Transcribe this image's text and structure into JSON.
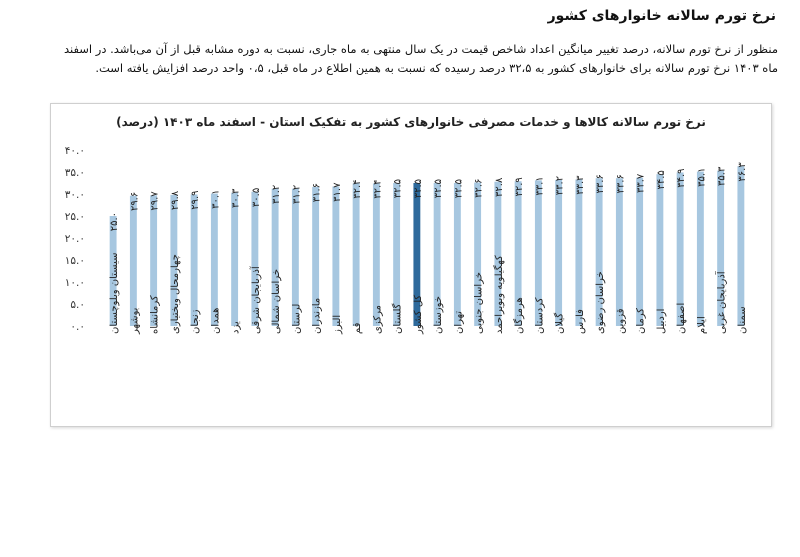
{
  "heading": "نرخ تورم سالانه خانوارهای کشور",
  "paragraph": {
    "line1": "منظور از نرخ تورم سالانه، درصد تغییر میانگین اعداد شاخص قیمت در یک سال منتهی به ماه جاری، نسبت به دوره مشابه قبل از آن می‌باشد. در اسفند",
    "line2": "ماه ۱۴۰۳ نرخ تورم سالانه برای خانوارهای کشور به ۳۲،۵ درصد رسیده که نسبت به همین اطلاع در ماه قبل، ۰،۵ واحد درصد افزایش یافته است."
  },
  "chart_data": {
    "type": "bar",
    "title": "نرخ تورم سالانه کالاها و خدمات مصرفی خانوارهای کشور به تفکیک استان - اسفند ماه ۱۴۰۳ (درصد)",
    "ylim": [
      0,
      40
    ],
    "yticks": [
      0,
      5,
      10,
      15,
      20,
      25,
      30,
      35,
      40
    ],
    "ytick_labels": [
      "۰.۰",
      "۵.۰",
      "۱۰.۰",
      "۱۵.۰",
      "۲۰.۰",
      "۲۵.۰",
      "۳۰.۰",
      "۳۵.۰",
      "۴۰.۰"
    ],
    "grid": false,
    "highlight_index": 15,
    "colors": {
      "bar": "#a7c7e0",
      "highlight": "#2e6a9c"
    },
    "categories": [
      "سیستان وبلوچستان",
      "بوشهر",
      "کرمانشاه",
      "چهارمحال وبختیاری",
      "زنجان",
      "همدان",
      "یزد",
      "آذربایجان شرقی",
      "خراسان شمالی",
      "لرستان",
      "مازندران",
      "البرز",
      "قم",
      "مرکزی",
      "گلستان",
      "کل کشور",
      "خوزستان",
      "تهران",
      "خراسان جنوبی",
      "کهگیلویه وبویراحمد",
      "هرمزگان",
      "کردستان",
      "گیلان",
      "فارس",
      "خراسان رضوی",
      "قزوین",
      "کرمان",
      "اردبیل",
      "اصفهان",
      "ایلام",
      "آذربایجان غربی",
      "سمنان"
    ],
    "values": [
      25.0,
      29.6,
      29.7,
      29.8,
      29.9,
      30.1,
      30.3,
      30.5,
      31.2,
      31.2,
      31.6,
      31.7,
      32.4,
      32.4,
      32.5,
      32.5,
      32.5,
      32.5,
      32.6,
      32.8,
      32.9,
      33.1,
      33.2,
      33.3,
      33.6,
      33.6,
      33.7,
      34.5,
      34.9,
      35.1,
      35.3,
      36.3
    ],
    "value_labels": [
      "۲۵.۰",
      "۲۹.۶",
      "۲۹.۷",
      "۲۹.۸",
      "۲۹.۹",
      "۳۰.۱",
      "۳۰.۳",
      "۳۰.۵",
      "۳۱.۲",
      "۳۱.۲",
      "۳۱.۶",
      "۳۱.۷",
      "۳۲.۴",
      "۳۲.۴",
      "۳۲.۵",
      "۳۲.۵",
      "۳۲.۵",
      "۳۲.۵",
      "۳۲.۶",
      "۳۲.۸",
      "۳۲.۹",
      "۳۳.۱",
      "۳۳.۲",
      "۳۳.۳",
      "۳۳.۶",
      "۳۳.۶",
      "۳۳.۷",
      "۳۴.۵",
      "۳۴.۹",
      "۳۵.۱",
      "۳۵.۳",
      "۳۶.۳"
    ]
  }
}
